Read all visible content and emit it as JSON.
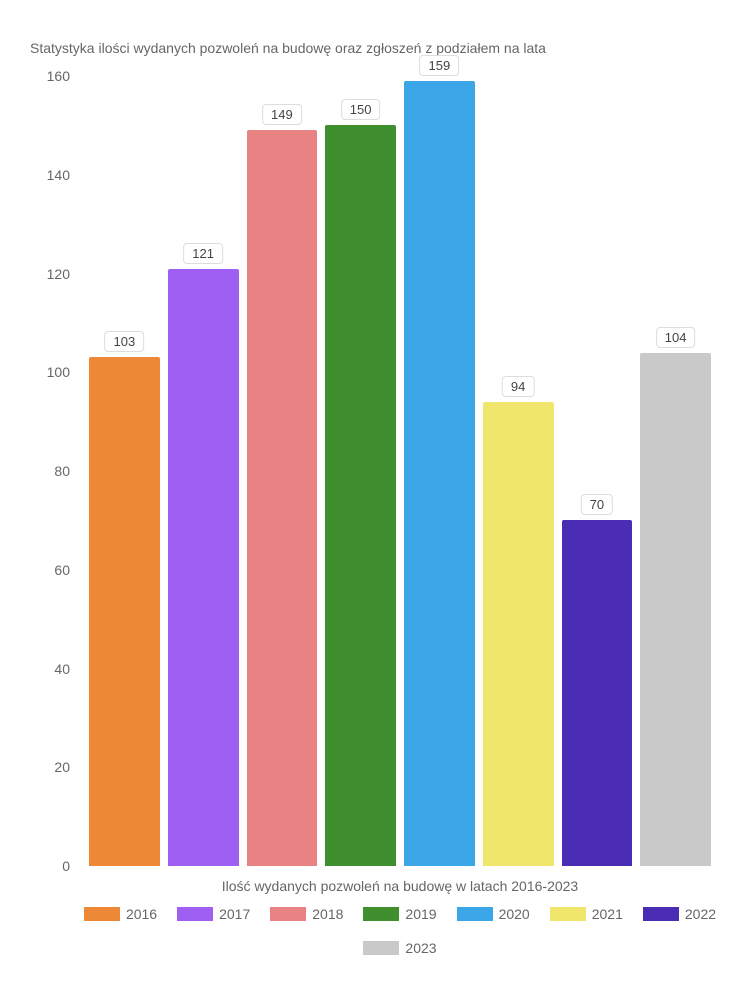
{
  "chart": {
    "type": "bar",
    "title": "Statystyka ilości wydanych pozwoleń na budowę oraz zgłoszeń z podziałem na lata",
    "title_fontsize": 14,
    "title_color": "#666666",
    "xlabel": "Ilość wydanych pozwoleń na budowę w latach 2016-2023",
    "label_fontsize": 14,
    "label_color": "#666666",
    "ylim": [
      0,
      160
    ],
    "ytick_step": 20,
    "yticks": [
      0,
      20,
      40,
      60,
      80,
      100,
      120,
      140,
      160
    ],
    "background_color": "#ffffff",
    "bar_width": 0.88,
    "series": [
      {
        "year": "2016",
        "value": 103,
        "color": "#ed8936"
      },
      {
        "year": "2017",
        "value": 121,
        "color": "#9f5ff2"
      },
      {
        "year": "2018",
        "value": 149,
        "color": "#e98282"
      },
      {
        "year": "2019",
        "value": 150,
        "color": "#3f8f2f"
      },
      {
        "year": "2020",
        "value": 159,
        "color": "#3ba7e8"
      },
      {
        "year": "2021",
        "value": 94,
        "color": "#f0e66b"
      },
      {
        "year": "2022",
        "value": 70,
        "color": "#4b2db5"
      },
      {
        "year": "2023",
        "value": 104,
        "color": "#c9c9c9"
      }
    ],
    "value_label_bg": "#ffffff",
    "value_label_border": "#dddddd",
    "value_label_color": "#444444",
    "value_label_fontsize": 13
  }
}
